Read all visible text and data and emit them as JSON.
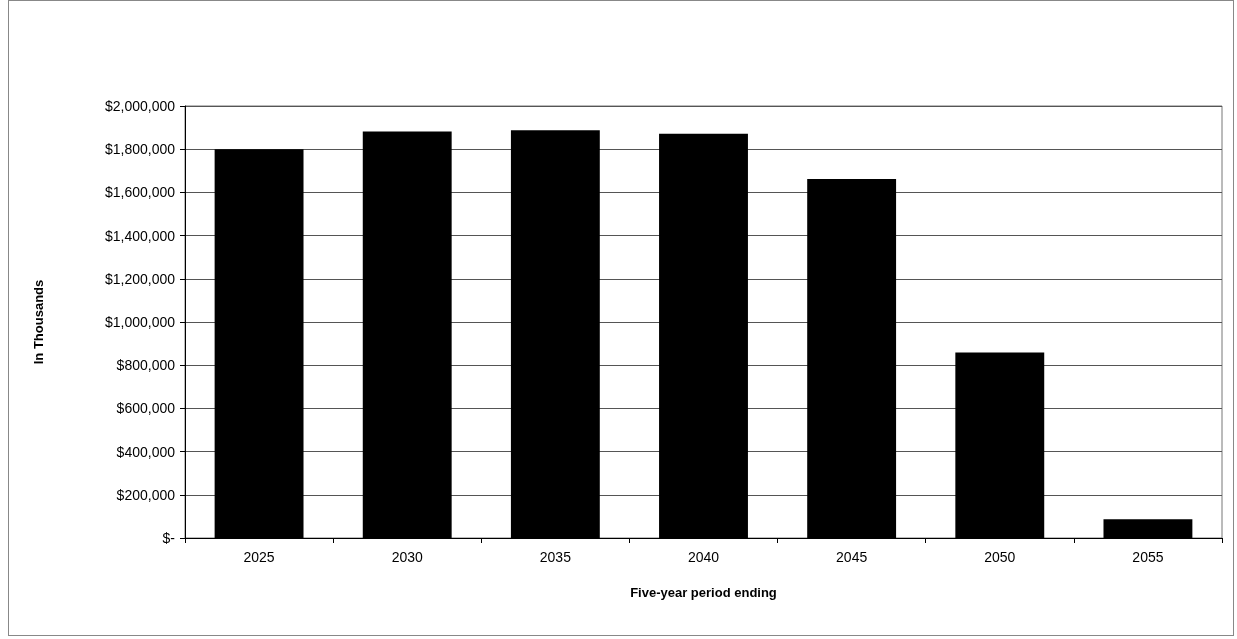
{
  "chart_data": {
    "type": "bar",
    "xlabel": "Five-year period ending",
    "ylabel": "In Thousands",
    "categories": [
      "2025",
      "2030",
      "2035",
      "2040",
      "2045",
      "2050",
      "2055"
    ],
    "values": [
      1800000,
      1882000,
      1888000,
      1871000,
      1662000,
      859000,
      87000
    ],
    "color": "#000000",
    "ylim": [
      0,
      2000000
    ],
    "yticks": [
      {
        "value": 0,
        "label": "$-"
      },
      {
        "value": 200000,
        "label": "$200,000"
      },
      {
        "value": 400000,
        "label": "$400,000"
      },
      {
        "value": 600000,
        "label": "$600,000"
      },
      {
        "value": 800000,
        "label": "$800,000"
      },
      {
        "value": 1000000,
        "label": "$1,000,000"
      },
      {
        "value": 1200000,
        "label": "$1,200,000"
      },
      {
        "value": 1400000,
        "label": "$1,400,000"
      },
      {
        "value": 1600000,
        "label": "$1,600,000"
      },
      {
        "value": 1800000,
        "label": "$1,800,000"
      },
      {
        "value": 2000000,
        "label": "$2,000,000"
      }
    ],
    "grid": "y"
  }
}
